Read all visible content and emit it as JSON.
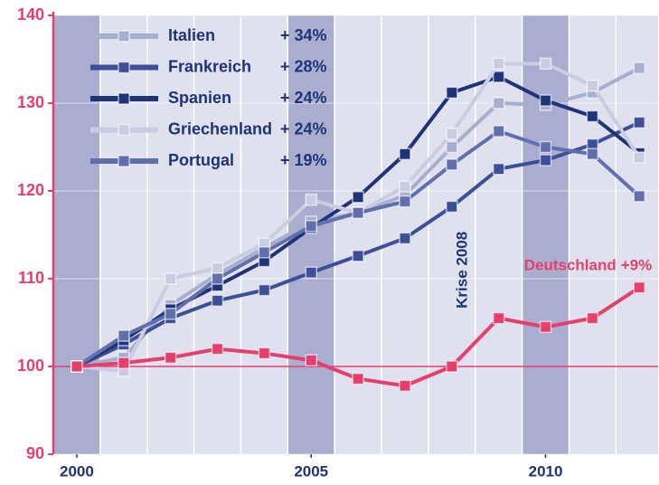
{
  "chart_data": {
    "type": "line",
    "x": [
      2000,
      2001,
      2002,
      2003,
      2004,
      2005,
      2006,
      2007,
      2008,
      2009,
      2010,
      2011,
      2012
    ],
    "xlim": [
      1999.5,
      2012.4
    ],
    "xticks": [
      2000,
      2005,
      2010
    ],
    "ylim": [
      90,
      140
    ],
    "yticks": [
      90,
      100,
      110,
      120,
      130,
      140
    ],
    "grid": true,
    "shaded_x": [
      2000,
      2005,
      2010
    ],
    "reference_y": 100,
    "legend": "upper left",
    "series": [
      {
        "name": "Italien",
        "label": "+ 34%",
        "color": "#a7aece",
        "legend": true,
        "values": [
          100,
          101,
          107,
          110.5,
          113.5,
          116.5,
          117.5,
          119.5,
          125,
          130,
          129.8,
          131.2,
          134
        ]
      },
      {
        "name": "Frankreich",
        "label": "+ 28%",
        "color": "#3d5097",
        "legend": true,
        "values": [
          100,
          102.5,
          105.5,
          107.5,
          108.7,
          110.7,
          112.6,
          114.6,
          118.2,
          122.5,
          123.5,
          125.3,
          127.8
        ]
      },
      {
        "name": "Spanien",
        "label": "+ 24%",
        "color": "#1f3478",
        "legend": true,
        "values": [
          100,
          103,
          106.5,
          109.2,
          112,
          115.8,
          119.3,
          124.2,
          131.2,
          133,
          130.3,
          128.5,
          124.3
        ]
      },
      {
        "name": "Griechenland",
        "label": "+ 24%",
        "color": "#c9cde2",
        "legend": true,
        "values": [
          100,
          99.5,
          110,
          111.2,
          114,
          119,
          117.5,
          120.5,
          126.5,
          134.5,
          134.5,
          132,
          123.8
        ]
      },
      {
        "name": "Portugal",
        "label": "+ 19%",
        "color": "#6170ad",
        "legend": true,
        "values": [
          100,
          103.5,
          106,
          110,
          113,
          116,
          117.5,
          118.8,
          123,
          126.8,
          125,
          124.2,
          119.4
        ]
      },
      {
        "name": "Deutschland",
        "label": "+9%",
        "color": "#e5406c",
        "legend": false,
        "values": [
          100,
          100.4,
          101,
          102,
          101.5,
          100.7,
          98.6,
          97.8,
          100,
          105.5,
          104.5,
          105.5,
          109
        ]
      }
    ],
    "annotations": [
      {
        "text": "Krise 2008",
        "x": 2008,
        "y": 111
      }
    ]
  }
}
